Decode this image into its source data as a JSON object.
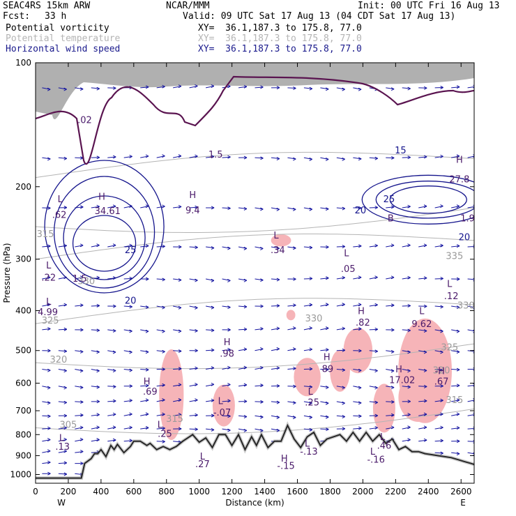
{
  "header": {
    "model": "SEAC4RS 15km ARW",
    "org": "NCAR/MMM",
    "init": "Init: 00 UTC Fri 16 Aug 13",
    "fcst_label": "Fcst:",
    "fcst_value": "33 h",
    "valid": "Valid: 09 UTC Sat 17 Aug 13 (04 CDT Sat 17 Aug 13)",
    "fields": [
      {
        "name": "Potential vorticity",
        "xy": "XY=  36.1,187.3 to 175.8, 77.0",
        "color": "#000000"
      },
      {
        "name": "Potential temperature",
        "xy": "XY=  36.1,187.3 to 175.8, 77.0",
        "color": "#b4b4b4"
      },
      {
        "name": "Horizontal wind speed",
        "xy": "XY=  36.1,187.3 to 175.8, 77.0",
        "color": "#1a1a8c"
      }
    ]
  },
  "chart_data": {
    "type": "cross-section",
    "xlabel": "Distance (km)",
    "ylabel": "Pressure (hPa)",
    "xlim": [
      0,
      2680
    ],
    "ylim": [
      1050,
      100
    ],
    "y_scale": "log",
    "x_ticks": [
      "0",
      "200",
      "400",
      "600",
      "800",
      "1000",
      "1200",
      "1400",
      "1600",
      "1800",
      "2000",
      "2200",
      "2400",
      "2600"
    ],
    "y_ticks": [
      "100",
      "200",
      "300",
      "400",
      "500",
      "600",
      "700",
      "800",
      "900",
      "1000"
    ],
    "end_labels": {
      "left": "W",
      "right": "E"
    },
    "colors": {
      "pv_contour": "#5a1450",
      "theta": "#b4b4b4",
      "wind_contour": "#14148c",
      "wind_vectors": "#1414a0",
      "pink_shading": "#f6b4b8",
      "gray_shading": "#707070",
      "terrain": "#000000"
    },
    "terrain": {
      "x": [
        0,
        280,
        300,
        340,
        360,
        380,
        400,
        430,
        460,
        480,
        500,
        540,
        580,
        600,
        640,
        680,
        700,
        740,
        780,
        820,
        860,
        900,
        960,
        1000,
        1040,
        1080,
        1120,
        1160,
        1200,
        1240,
        1280,
        1320,
        1350,
        1380,
        1420,
        1460,
        1500,
        1540,
        1580,
        1620,
        1660,
        1700,
        1740,
        1780,
        1820,
        1860,
        1900,
        1940,
        1980,
        2020,
        2060,
        2100,
        2140,
        2180,
        2220,
        2260,
        2300,
        2340,
        2380,
        2420,
        2460,
        2500,
        2540,
        2580,
        2620,
        2660,
        2680
      ],
      "p": [
        1020,
        1020,
        940,
        915,
        890,
        890,
        870,
        905,
        850,
        870,
        845,
        885,
        855,
        830,
        830,
        850,
        840,
        870,
        855,
        870,
        855,
        830,
        800,
        835,
        815,
        860,
        800,
        800,
        850,
        800,
        870,
        810,
        850,
        800,
        860,
        830,
        830,
        760,
        820,
        860,
        810,
        790,
        850,
        820,
        810,
        800,
        830,
        790,
        830,
        790,
        830,
        800,
        840,
        820,
        870,
        855,
        880,
        880,
        890,
        895,
        900,
        905,
        910,
        920,
        930,
        940,
        945
      ]
    },
    "theta_contours": [
      {
        "label": "305",
        "p_at_left": 770
      },
      {
        "label": "315",
        "p_at_left": 300
      },
      {
        "label": "320",
        "p_at_left": 535
      },
      {
        "label": "325",
        "p_at_left": 430
      },
      {
        "label": "330",
        "p_at_left": 250
      },
      {
        "label": "335",
        "p_at_left": 190
      }
    ],
    "theta_labels": [
      {
        "text": "305",
        "x": 200,
        "p": 770
      },
      {
        "text": "315",
        "x": 60,
        "p": 265
      },
      {
        "text": "320",
        "x": 140,
        "p": 535
      },
      {
        "text": "325",
        "x": 90,
        "p": 430
      },
      {
        "text": "330",
        "x": 1700,
        "p": 425
      },
      {
        "text": "325",
        "x": 2530,
        "p": 500
      },
      {
        "text": "335",
        "x": 2560,
        "p": 300
      },
      {
        "text": "330",
        "x": 2630,
        "p": 395
      },
      {
        "text": "315",
        "x": 2560,
        "p": 670
      },
      {
        "text": "320",
        "x": 2480,
        "p": 568
      },
      {
        "text": "315",
        "x": 850,
        "p": 745
      },
      {
        "text": "330",
        "x": 310,
        "p": 345
      }
    ],
    "wind_labels": [
      {
        "text": "20",
        "x": 1985,
        "p": 232
      },
      {
        "text": "25",
        "x": 2160,
        "p": 218
      },
      {
        "text": "25",
        "x": 580,
        "p": 290
      },
      {
        "text": "20",
        "x": 580,
        "p": 385
      },
      {
        "text": "20",
        "x": 2620,
        "p": 270
      },
      {
        "text": "15",
        "x": 2230,
        "p": 166
      }
    ],
    "pv_annotations": [
      {
        "t": "L",
        "x": 150,
        "p": 218
      },
      {
        "t": ".62",
        "x": 145,
        "p": 238
      },
      {
        "t": "L",
        "x": 80,
        "p": 316
      },
      {
        "t": ".22",
        "x": 80,
        "p": 338
      },
      {
        "t": "L",
        "x": 80,
        "p": 387
      },
      {
        "t": "4.99",
        "x": 75,
        "p": 410
      },
      {
        "t": "H",
        "x": 405,
        "p": 215
      },
      {
        "t": "34.61",
        "x": 440,
        "p": 233
      },
      {
        "t": "1.5",
        "x": 270,
        "p": 340
      },
      {
        "t": ".02",
        "x": 300,
        "p": 140
      },
      {
        "t": "H",
        "x": 960,
        "p": 213
      },
      {
        "t": "9.4",
        "x": 960,
        "p": 232
      },
      {
        "t": "1.5",
        "x": 1100,
        "p": 170
      },
      {
        "t": "L",
        "x": 1470,
        "p": 267
      },
      {
        "t": ".34",
        "x": 1480,
        "p": 290
      },
      {
        "t": "L",
        "x": 1900,
        "p": 295
      },
      {
        "t": ".05",
        "x": 1910,
        "p": 322
      },
      {
        "t": "H",
        "x": 1990,
        "p": 408
      },
      {
        "t": ".82",
        "x": 2000,
        "p": 435
      },
      {
        "t": "L",
        "x": 2360,
        "p": 408
      },
      {
        "t": "9.62",
        "x": 2360,
        "p": 438
      },
      {
        "t": "L",
        "x": 2530,
        "p": 350
      },
      {
        "t": ".12",
        "x": 2540,
        "p": 375
      },
      {
        "t": "H",
        "x": 2590,
        "p": 175
      },
      {
        "t": "27.8",
        "x": 2590,
        "p": 195
      },
      {
        "t": "1.9",
        "x": 2640,
        "p": 243
      },
      {
        "t": "B",
        "x": 2170,
        "p": 243
      },
      {
        "t": "H",
        "x": 1170,
        "p": 485
      },
      {
        "t": ".98",
        "x": 1170,
        "p": 517
      },
      {
        "t": "H",
        "x": 1780,
        "p": 528
      },
      {
        "t": "89",
        "x": 1785,
        "p": 564
      },
      {
        "t": "H",
        "x": 2220,
        "p": 565
      },
      {
        "t": "17.02",
        "x": 2240,
        "p": 600
      },
      {
        "t": "-H",
        "x": 2470,
        "p": 570
      },
      {
        "t": ".67",
        "x": 2480,
        "p": 605
      },
      {
        "t": "H",
        "x": 680,
        "p": 605
      },
      {
        "t": ".69",
        "x": 700,
        "p": 640
      },
      {
        "t": "L",
        "x": 1130,
        "p": 675
      },
      {
        "t": "-.07",
        "x": 1140,
        "p": 720
      },
      {
        "t": "L",
        "x": 1680,
        "p": 640
      },
      {
        "t": ".25",
        "x": 1690,
        "p": 680
      },
      {
        "t": "L",
        "x": 760,
        "p": 770
      },
      {
        "t": ".25",
        "x": 790,
        "p": 810
      },
      {
        "t": "L",
        "x": 1660,
        "p": 855
      },
      {
        "t": "-.13",
        "x": 1670,
        "p": 895
      },
      {
        "t": "L",
        "x": 2120,
        "p": 825
      },
      {
        "t": ".46",
        "x": 2130,
        "p": 865
      },
      {
        "t": "L",
        "x": 2060,
        "p": 895
      },
      {
        "t": "-.16",
        "x": 2080,
        "p": 935
      },
      {
        "t": "L",
        "x": 1020,
        "p": 920
      },
      {
        "t": ".27",
        "x": 1020,
        "p": 960
      },
      {
        "t": "L",
        "x": 160,
        "p": 830
      },
      {
        "t": ".13",
        "x": 165,
        "p": 870
      },
      {
        "t": "H",
        "x": 1520,
        "p": 930
      },
      {
        "t": "-.15",
        "x": 1530,
        "p": 970
      }
    ],
    "pink_patches": [
      {
        "x": 1500,
        "p": 270,
        "w": 90,
        "h": 35
      },
      {
        "x": 1560,
        "p": 410,
        "w": 40,
        "h": 30
      },
      {
        "x": 1660,
        "p": 580,
        "w": 120,
        "h": 110
      },
      {
        "x": 1860,
        "p": 560,
        "w": 90,
        "h": 120
      },
      {
        "x": 1970,
        "p": 500,
        "w": 130,
        "h": 130
      },
      {
        "x": 2380,
        "p": 560,
        "w": 240,
        "h": 300
      },
      {
        "x": 2340,
        "p": 650,
        "w": 180,
        "h": 140
      },
      {
        "x": 2130,
        "p": 690,
        "w": 100,
        "h": 140
      },
      {
        "x": 830,
        "p": 640,
        "w": 110,
        "h": 260
      },
      {
        "x": 1150,
        "p": 680,
        "w": 100,
        "h": 120
      }
    ]
  }
}
